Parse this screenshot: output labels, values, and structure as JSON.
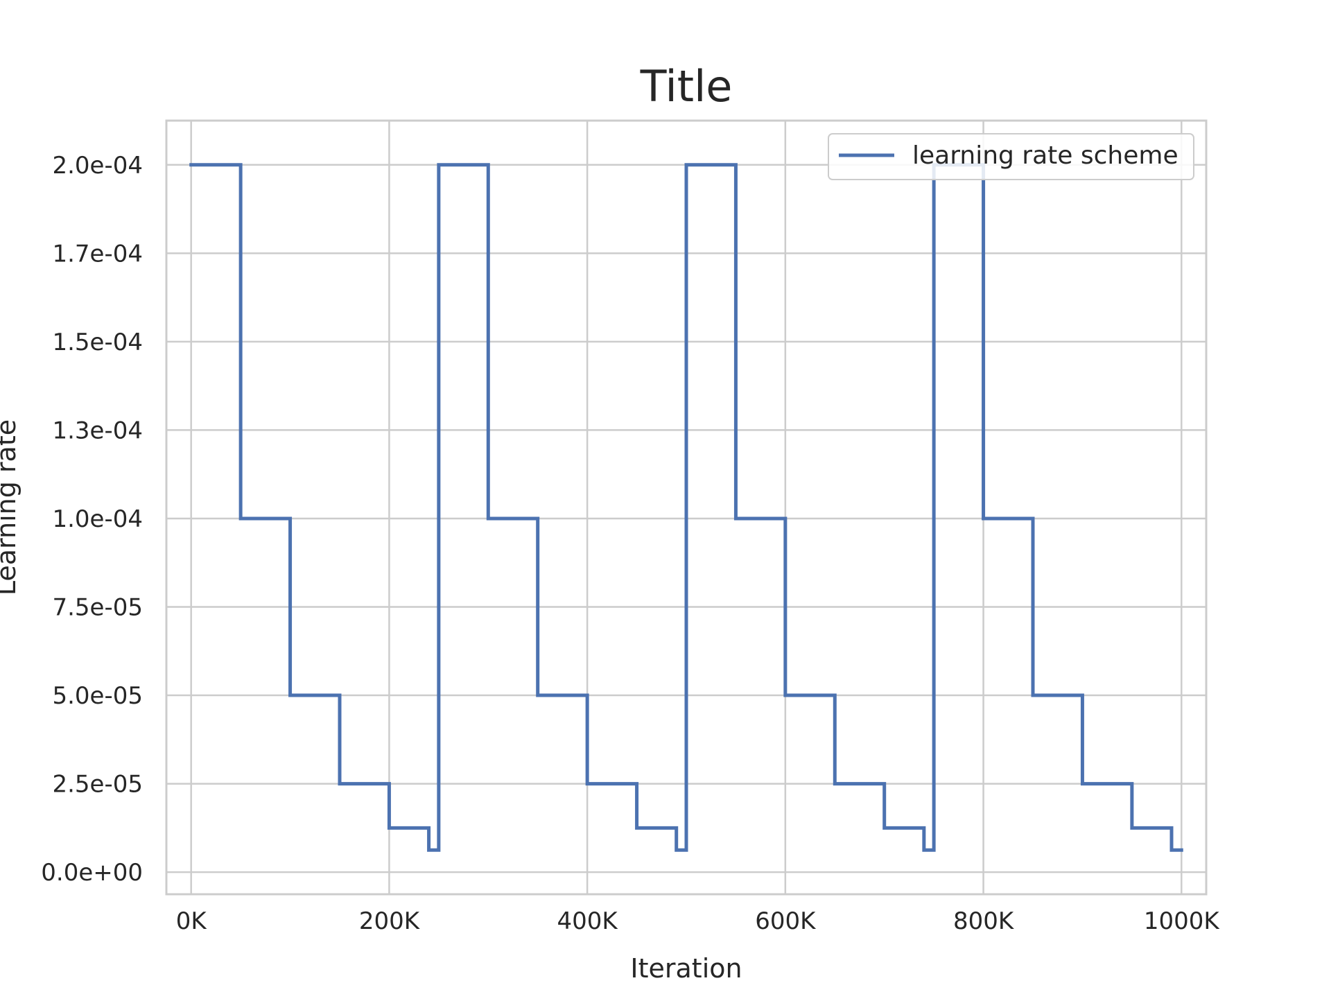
{
  "chart_data": {
    "type": "line",
    "step": true,
    "title": "Title",
    "xlabel": "Iteration",
    "ylabel": "Learning rate",
    "xlim": [
      -25000,
      1025000
    ],
    "ylim": [
      -6.25e-06,
      0.0002125
    ],
    "xticks": [
      0,
      200000,
      400000,
      600000,
      800000,
      1000000
    ],
    "xtick_labels": [
      "0K",
      "200K",
      "400K",
      "600K",
      "800K",
      "1000K"
    ],
    "yticks": [
      0,
      2.5e-05,
      5e-05,
      7.5e-05,
      0.0001,
      0.000125,
      0.00015,
      0.000175,
      0.0002
    ],
    "ytick_labels": [
      "0.0e+00",
      "2.5e-05",
      "5.0e-05",
      "7.5e-05",
      "1.0e-04",
      "1.3e-04",
      "1.5e-04",
      "1.7e-04",
      "2.0e-04"
    ],
    "grid": true,
    "legend": {
      "position": "upper-right",
      "entries": [
        "learning rate scheme"
      ]
    },
    "series": [
      {
        "name": "learning rate scheme",
        "color": "#4c72b0",
        "x": [
          0,
          50000,
          50000,
          100000,
          100000,
          150000,
          150000,
          200000,
          200000,
          240000,
          240000,
          250000,
          250000,
          300000,
          300000,
          350000,
          350000,
          400000,
          400000,
          450000,
          450000,
          490000,
          490000,
          500000,
          500000,
          550000,
          550000,
          600000,
          600000,
          650000,
          650000,
          700000,
          700000,
          740000,
          740000,
          750000,
          750000,
          800000,
          800000,
          850000,
          850000,
          900000,
          900000,
          950000,
          950000,
          990000,
          990000,
          1000000
        ],
        "y": [
          0.0002,
          0.0002,
          0.0001,
          0.0001,
          5e-05,
          5e-05,
          2.5e-05,
          2.5e-05,
          1.25e-05,
          1.25e-05,
          6.25e-06,
          6.25e-06,
          0.0002,
          0.0002,
          0.0001,
          0.0001,
          5e-05,
          5e-05,
          2.5e-05,
          2.5e-05,
          1.25e-05,
          1.25e-05,
          6.25e-06,
          6.25e-06,
          0.0002,
          0.0002,
          0.0001,
          0.0001,
          5e-05,
          5e-05,
          2.5e-05,
          2.5e-05,
          1.25e-05,
          1.25e-05,
          6.25e-06,
          6.25e-06,
          0.0002,
          0.0002,
          0.0001,
          0.0001,
          5e-05,
          5e-05,
          2.5e-05,
          2.5e-05,
          1.25e-05,
          1.25e-05,
          6.25e-06,
          6.25e-06
        ]
      }
    ]
  }
}
